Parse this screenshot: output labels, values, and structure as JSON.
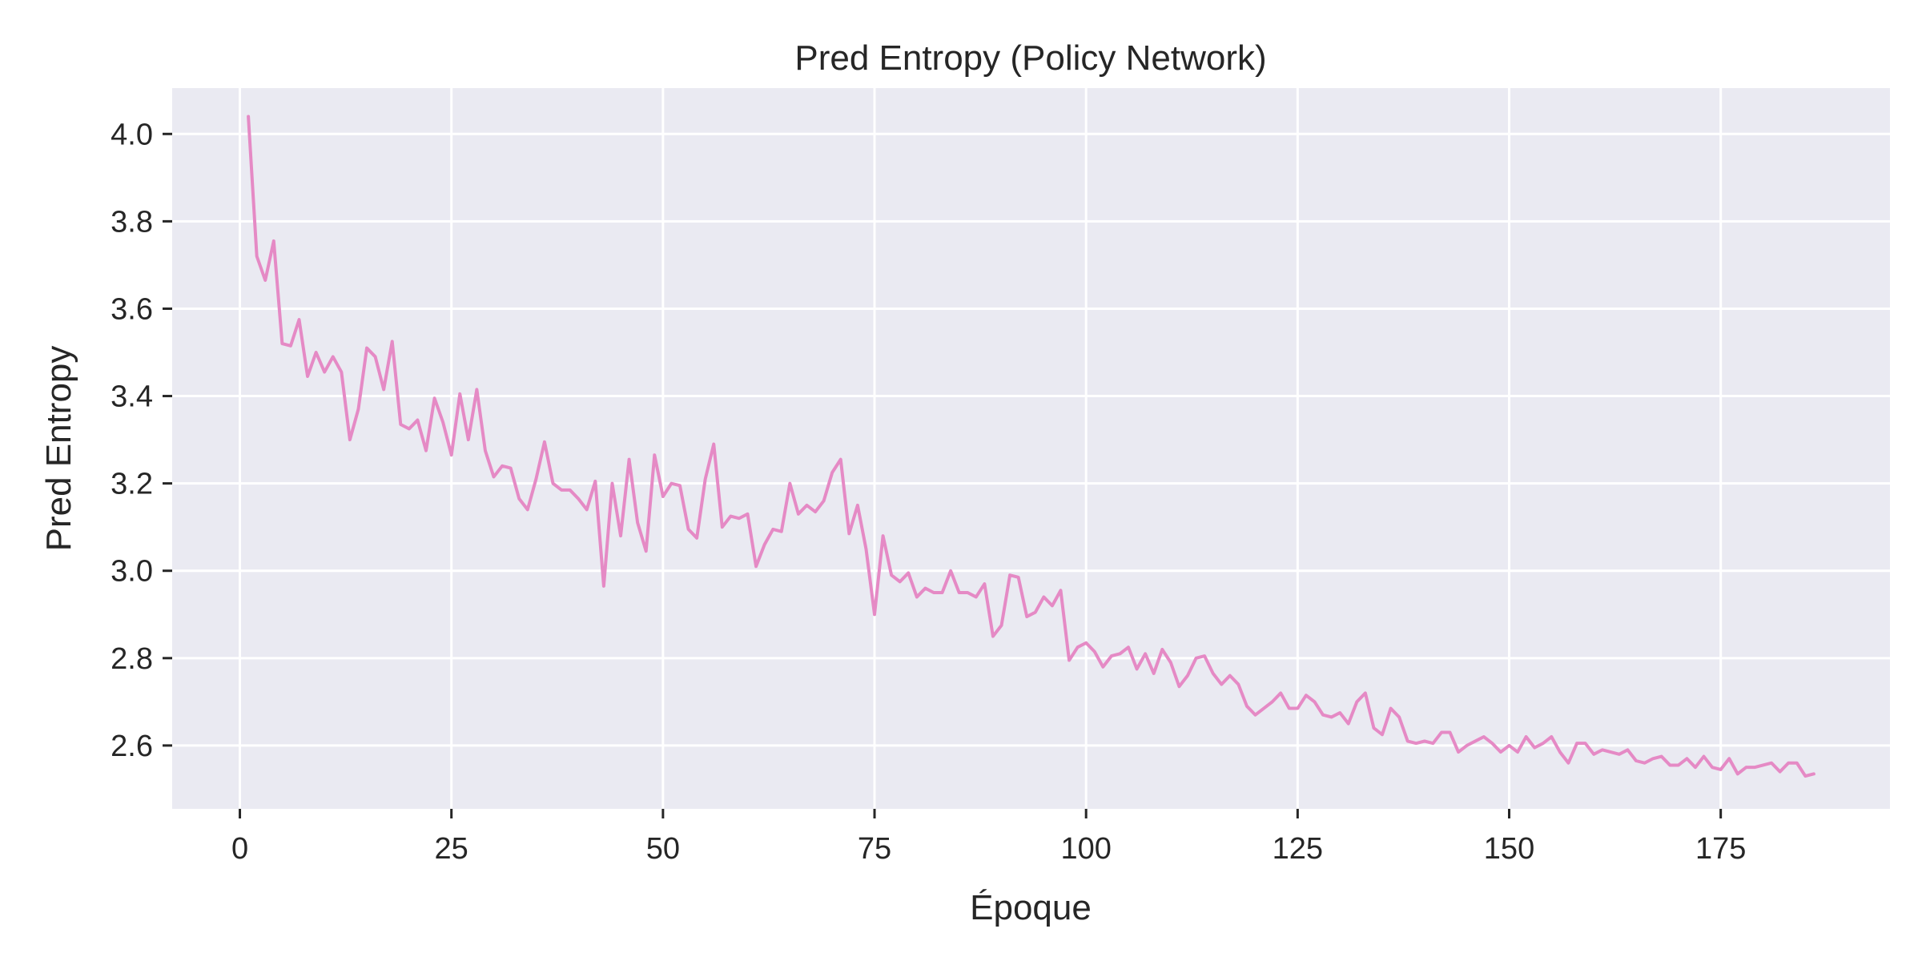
{
  "chart_data": {
    "type": "line",
    "title": "Pred Entropy (Policy Network)",
    "xlabel": "Époque",
    "ylabel": "Pred Entropy",
    "xlim": [
      -8,
      195
    ],
    "ylim": [
      2.455,
      4.105
    ],
    "xticks": [
      0,
      25,
      50,
      75,
      100,
      125,
      150,
      175
    ],
    "yticks": [
      2.6,
      2.8,
      3.0,
      3.2,
      3.4,
      3.6,
      3.8,
      4.0
    ],
    "xtick_labels": [
      "0",
      "25",
      "50",
      "75",
      "100",
      "125",
      "150",
      "175"
    ],
    "ytick_labels": [
      "2.6",
      "2.8",
      "3.0",
      "3.2",
      "3.4",
      "3.6",
      "3.8",
      "4.0"
    ],
    "grid": true,
    "colors": {
      "background": "#eaeaf2",
      "grid": "#ffffff",
      "line": "#e58ac5",
      "text": "#262626"
    },
    "series": [
      {
        "x_start": 1,
        "x_step": 1,
        "values": [
          4.04,
          3.72,
          3.665,
          3.755,
          3.52,
          3.515,
          3.575,
          3.445,
          3.5,
          3.455,
          3.49,
          3.455,
          3.3,
          3.37,
          3.51,
          3.49,
          3.415,
          3.525,
          3.335,
          3.325,
          3.345,
          3.275,
          3.395,
          3.34,
          3.265,
          3.405,
          3.3,
          3.415,
          3.275,
          3.215,
          3.24,
          3.235,
          3.165,
          3.14,
          3.21,
          3.295,
          3.2,
          3.185,
          3.185,
          3.165,
          3.14,
          3.205,
          2.965,
          3.2,
          3.08,
          3.255,
          3.11,
          3.045,
          3.265,
          3.17,
          3.2,
          3.195,
          3.095,
          3.075,
          3.21,
          3.29,
          3.1,
          3.125,
          3.12,
          3.13,
          3.01,
          3.06,
          3.095,
          3.09,
          3.2,
          3.13,
          3.15,
          3.135,
          3.16,
          3.225,
          3.255,
          3.085,
          3.15,
          3.05,
          2.9,
          3.08,
          2.99,
          2.975,
          2.995,
          2.94,
          2.96,
          2.95,
          2.95,
          3.0,
          2.95,
          2.95,
          2.94,
          2.97,
          2.85,
          2.875,
          2.99,
          2.985,
          2.895,
          2.905,
          2.94,
          2.92,
          2.955,
          2.795,
          2.825,
          2.835,
          2.815,
          2.78,
          2.805,
          2.81,
          2.825,
          2.775,
          2.81,
          2.765,
          2.82,
          2.79,
          2.735,
          2.76,
          2.8,
          2.805,
          2.765,
          2.74,
          2.76,
          2.74,
          2.69,
          2.67,
          2.685,
          2.7,
          2.72,
          2.685,
          2.685,
          2.715,
          2.7,
          2.67,
          2.665,
          2.675,
          2.65,
          2.7,
          2.72,
          2.64,
          2.625,
          2.685,
          2.665,
          2.61,
          2.605,
          2.61,
          2.605,
          2.63,
          2.63,
          2.585,
          2.6,
          2.61,
          2.62,
          2.605,
          2.585,
          2.6,
          2.585,
          2.62,
          2.595,
          2.605,
          2.62,
          2.585,
          2.56,
          2.605,
          2.605,
          2.58,
          2.59,
          2.585,
          2.58,
          2.59,
          2.565,
          2.56,
          2.57,
          2.575,
          2.555,
          2.555,
          2.57,
          2.55,
          2.575,
          2.55,
          2.545,
          2.57,
          2.535,
          2.55,
          2.55,
          2.555,
          2.56,
          2.54,
          2.56,
          2.56,
          2.53,
          2.535
        ]
      }
    ]
  }
}
